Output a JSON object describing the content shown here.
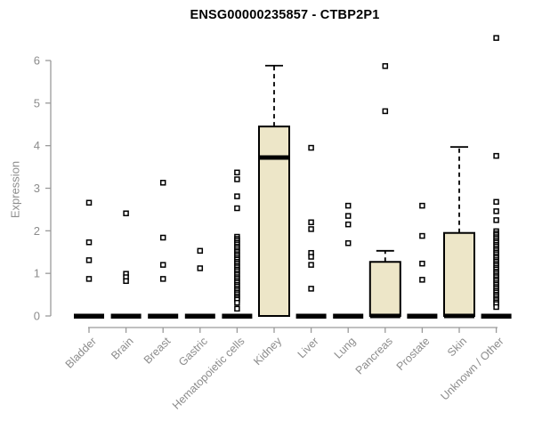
{
  "chart_data": {
    "type": "boxplot",
    "title": "ENSG00000235857 - CTBP2P1",
    "ylabel": "Expression",
    "xlabel": "",
    "ylim": [
      0,
      6.6
    ],
    "yticks": [
      0,
      1,
      2,
      3,
      4,
      5,
      6
    ],
    "grid": false,
    "legend": "none",
    "colors": {
      "box_fill": "#ede6c8",
      "box_stroke": "#000000",
      "point_stroke": "#000000",
      "point_fill": "#ffffff",
      "axis": "#9a9a9a",
      "text": "#8c8c8c",
      "title": "#000000"
    },
    "categories": [
      "Bladder",
      "Brain",
      "Breast",
      "Gastric",
      "Hematopoietic cells",
      "Kidney",
      "Liver",
      "Lung",
      "Pancreas",
      "Prostate",
      "Skin",
      "Unknown / Other"
    ],
    "boxes": [
      {
        "category": "Bladder",
        "q1": 0,
        "median": 0,
        "q3": 0,
        "whisker_low": 0,
        "whisker_high": 0,
        "outliers": [
          2.66,
          1.73,
          1.31,
          0.87
        ]
      },
      {
        "category": "Brain",
        "q1": 0,
        "median": 0,
        "q3": 0,
        "whisker_low": 0,
        "whisker_high": 0,
        "outliers": [
          2.41,
          0.99,
          0.91,
          0.82
        ]
      },
      {
        "category": "Breast",
        "q1": 0,
        "median": 0,
        "q3": 0,
        "whisker_low": 0,
        "whisker_high": 0,
        "outliers": [
          3.13,
          1.84,
          1.2,
          0.87
        ]
      },
      {
        "category": "Gastric",
        "q1": 0,
        "median": 0,
        "q3": 0,
        "whisker_low": 0,
        "whisker_high": 0,
        "outliers": [
          1.53,
          1.12
        ]
      },
      {
        "category": "Hematopoietic cells",
        "q1": 0,
        "median": 0,
        "q3": 0,
        "whisker_low": 0,
        "whisker_high": 0,
        "outliers": [
          3.37,
          3.21,
          2.81,
          2.53,
          1.86,
          1.81,
          1.77,
          1.72,
          1.68,
          1.63,
          1.59,
          1.54,
          1.5,
          1.45,
          1.41,
          1.36,
          1.32,
          1.27,
          1.23,
          1.18,
          1.14,
          1.09,
          1.05,
          1.0,
          0.96,
          0.91,
          0.87,
          0.82,
          0.78,
          0.73,
          0.69,
          0.64,
          0.6,
          0.55,
          0.51,
          0.46,
          0.42,
          0.38,
          0.31,
          0.17
        ]
      },
      {
        "category": "Kidney",
        "q1": 0,
        "median": 3.72,
        "q3": 4.45,
        "whisker_low": 0,
        "whisker_high": 5.88,
        "outliers": []
      },
      {
        "category": "Liver",
        "q1": 0,
        "median": 0,
        "q3": 0,
        "whisker_low": 0,
        "whisker_high": 0,
        "outliers": [
          3.95,
          2.2,
          2.04,
          1.48,
          1.39,
          1.2,
          0.64
        ]
      },
      {
        "category": "Lung",
        "q1": 0,
        "median": 0,
        "q3": 0,
        "whisker_low": 0,
        "whisker_high": 0,
        "outliers": [
          2.59,
          2.35,
          2.15,
          1.71
        ]
      },
      {
        "category": "Pancreas",
        "q1": 0,
        "median": 0,
        "q3": 1.27,
        "whisker_low": 0,
        "whisker_high": 1.53,
        "outliers": [
          5.87,
          4.81
        ]
      },
      {
        "category": "Prostate",
        "q1": 0,
        "median": 0,
        "q3": 0,
        "whisker_low": 0,
        "whisker_high": 0,
        "outliers": [
          2.59,
          1.88,
          1.23,
          0.85
        ]
      },
      {
        "category": "Skin",
        "q1": 0,
        "median": 0,
        "q3": 1.95,
        "whisker_low": 0,
        "whisker_high": 3.97,
        "outliers": []
      },
      {
        "category": "Unknown / Other",
        "q1": 0,
        "median": 0,
        "q3": 0,
        "whisker_low": 0,
        "whisker_high": 0,
        "outliers": [
          6.53,
          3.76,
          2.68,
          2.46,
          2.25,
          1.99,
          1.94,
          1.9,
          1.85,
          1.81,
          1.76,
          1.72,
          1.67,
          1.63,
          1.58,
          1.54,
          1.49,
          1.45,
          1.4,
          1.36,
          1.31,
          1.27,
          1.22,
          1.18,
          1.13,
          1.09,
          1.04,
          1.0,
          0.95,
          0.91,
          0.86,
          0.82,
          0.77,
          0.73,
          0.68,
          0.64,
          0.59,
          0.55,
          0.5,
          0.46,
          0.41,
          0.37,
          0.32,
          0.28,
          0.21
        ]
      }
    ]
  }
}
